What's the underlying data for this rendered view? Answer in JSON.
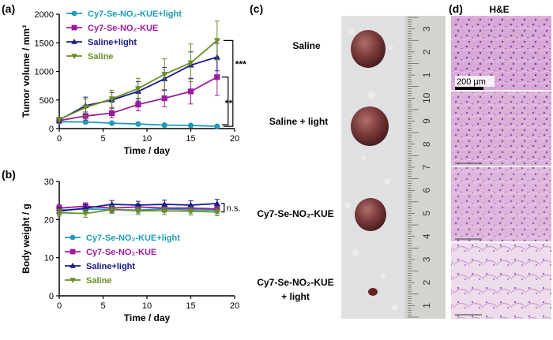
{
  "panels": {
    "a": "(a)",
    "b": "(b)",
    "c": "(c)",
    "d": "(d)"
  },
  "colors": {
    "series1": "#1f9bb5",
    "series2": "#9b1c9b",
    "series3": "#1a1a8c",
    "series4": "#6b8e23"
  },
  "chart_data": [
    {
      "type": "line",
      "panel": "a",
      "xlabel": "Time / day",
      "ylabel": "Tumor volume / mm³",
      "xlim": [
        0,
        20
      ],
      "ylim": [
        0,
        2000
      ],
      "xticks": [
        0,
        5,
        10,
        15,
        20
      ],
      "yticks": [
        0,
        500,
        1000,
        1500,
        2000
      ],
      "legend_position": "top-left",
      "x": [
        0,
        3,
        6,
        9,
        12,
        15,
        18
      ],
      "series": [
        {
          "name": "Cy7-Se-NO₂-KUE+light",
          "marker": "circle",
          "color": "#1f9bb5",
          "values": [
            120,
            115,
            95,
            80,
            60,
            55,
            40
          ],
          "errors": [
            30,
            25,
            25,
            20,
            15,
            15,
            20
          ]
        },
        {
          "name": "Cy7-Se-NO₂-KUE",
          "marker": "square",
          "color": "#9b1c9b",
          "values": [
            140,
            220,
            270,
            420,
            530,
            650,
            900
          ],
          "errors": [
            40,
            70,
            80,
            110,
            150,
            220,
            320
          ]
        },
        {
          "name": "Saline+light",
          "marker": "triangle-up",
          "color": "#1a1a8c",
          "values": [
            150,
            400,
            500,
            650,
            870,
            1110,
            1250
          ],
          "errors": [
            40,
            150,
            130,
            170,
            200,
            230,
            240
          ]
        },
        {
          "name": "Saline",
          "marker": "triangle-down",
          "color": "#6b8e23",
          "values": [
            160,
            370,
            520,
            700,
            950,
            1150,
            1540
          ],
          "errors": [
            40,
            150,
            150,
            180,
            270,
            330,
            340
          ]
        }
      ],
      "significance": [
        {
          "label": "***",
          "between": [
            "Cy7-Se-NO₂-KUE+light",
            "Saline"
          ]
        },
        {
          "label": "**",
          "between": [
            "Cy7-Se-NO₂-KUE+light",
            "Cy7-Se-NO₂-KUE"
          ]
        }
      ]
    },
    {
      "type": "line",
      "panel": "b",
      "xlabel": "Time / day",
      "ylabel": "Body weight / g",
      "xlim": [
        0,
        20
      ],
      "ylim": [
        0,
        30
      ],
      "xticks": [
        0,
        5,
        10,
        15,
        20
      ],
      "yticks": [
        0,
        10,
        20,
        30
      ],
      "legend_position": "center",
      "x": [
        0,
        3,
        6,
        9,
        12,
        15,
        18
      ],
      "series": [
        {
          "name": "Cy7-Se-NO₂-KUE+light",
          "marker": "circle",
          "color": "#1f9bb5",
          "values": [
            22.5,
            22.8,
            22.6,
            22.5,
            22.8,
            22.6,
            22.5
          ],
          "errors": [
            0.8,
            0.8,
            0.8,
            0.8,
            0.9,
            0.9,
            0.9
          ]
        },
        {
          "name": "Cy7-Se-NO₂-KUE",
          "marker": "square",
          "color": "#9b1c9b",
          "values": [
            23.0,
            23.5,
            23.0,
            23.3,
            23.0,
            23.0,
            22.8
          ],
          "errors": [
            0.9,
            0.9,
            0.9,
            0.9,
            0.9,
            0.9,
            0.9
          ]
        },
        {
          "name": "Saline+light",
          "marker": "triangle-up",
          "color": "#1a1a8c",
          "values": [
            22.2,
            23.0,
            24.0,
            23.8,
            24.0,
            23.8,
            24.2
          ],
          "errors": [
            0.9,
            1.0,
            1.0,
            1.0,
            1.1,
            1.1,
            1.1
          ]
        },
        {
          "name": "Saline",
          "marker": "triangle-down",
          "color": "#6b8e23",
          "values": [
            21.8,
            21.6,
            22.6,
            22.3,
            22.3,
            22.2,
            22.0
          ],
          "errors": [
            0.9,
            1.0,
            1.0,
            1.0,
            1.0,
            1.0,
            1.0
          ]
        }
      ],
      "significance": [
        {
          "label": "n.s.",
          "between": [
            "Cy7-Se-NO₂-KUE+light",
            "Saline+light"
          ]
        }
      ]
    }
  ],
  "photo_panel": {
    "labels": [
      "Saline",
      "Saline + light",
      "Cy7-Se-NO₂-KUE",
      "Cy7-Se-NO₂-KUE",
      "+ light"
    ],
    "ruler_numbers": [
      "3",
      "2",
      "1",
      "10",
      "9",
      "8",
      "7",
      "6",
      "5",
      "4",
      "3",
      "2",
      "1"
    ]
  },
  "histology_panel": {
    "title": "H&E",
    "scale_bar": "200 µm"
  }
}
